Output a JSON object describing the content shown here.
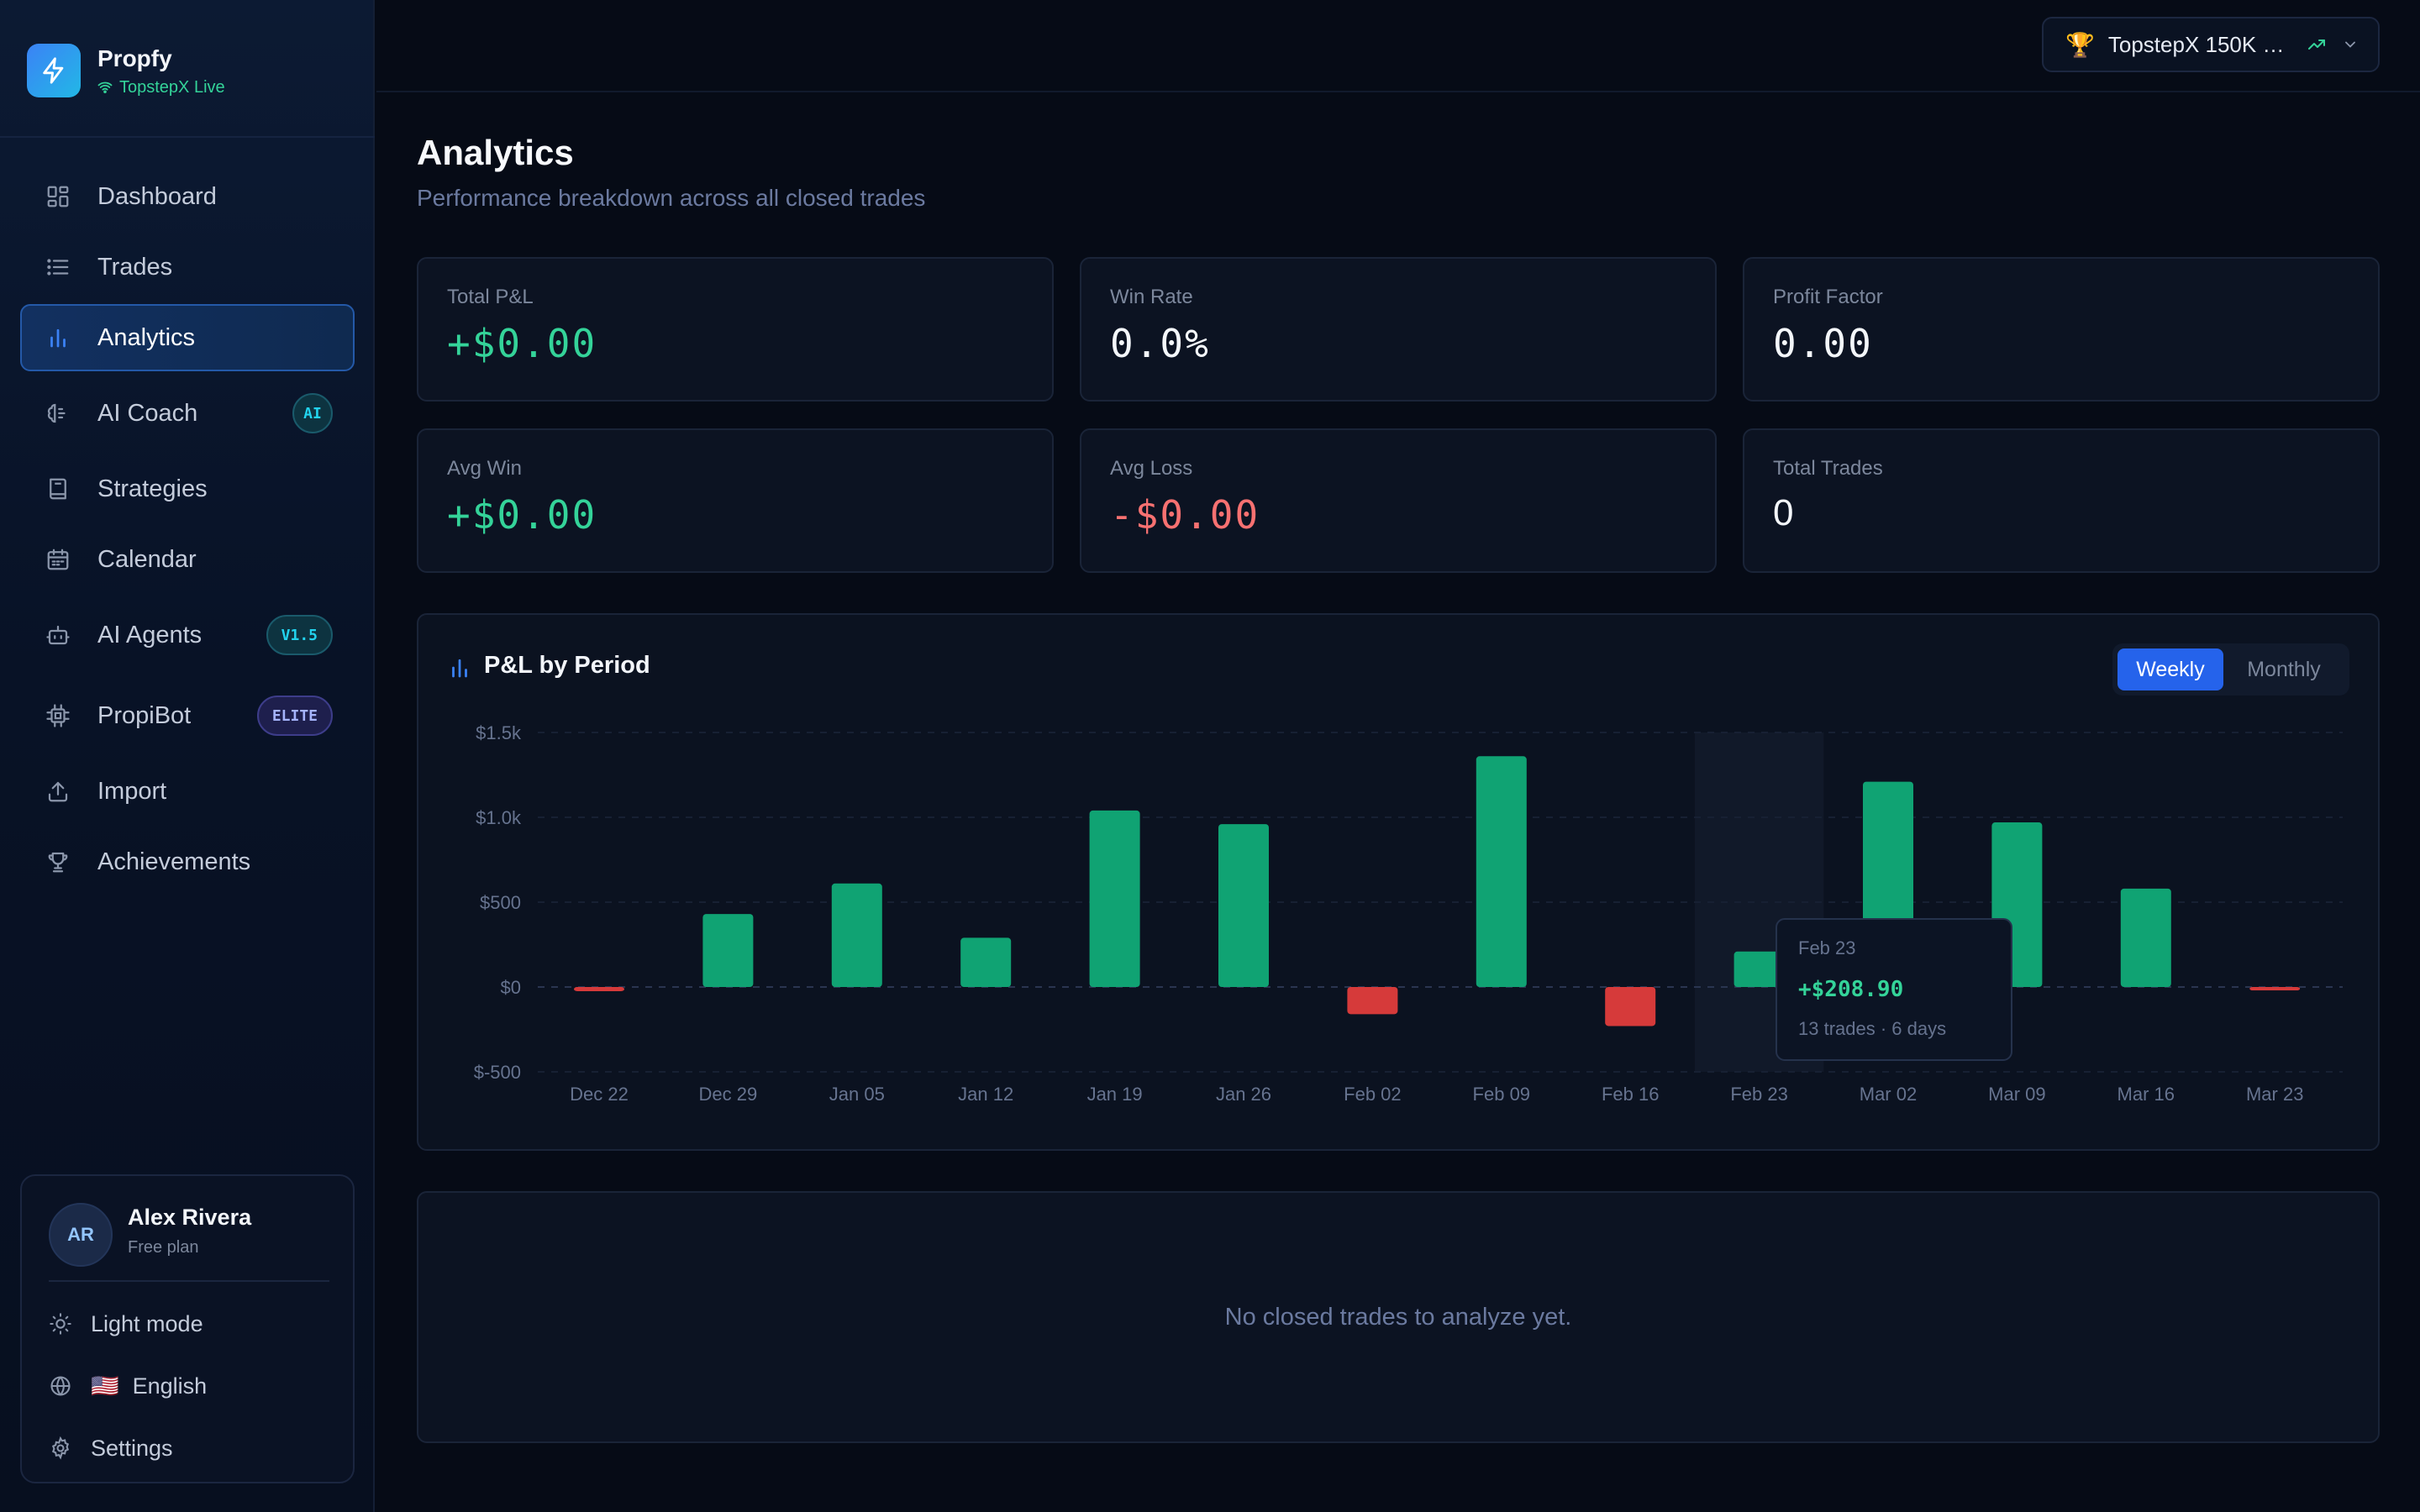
{
  "brand": {
    "name": "Propfy",
    "connection": "TopstepX Live"
  },
  "nav": [
    {
      "id": "dashboard",
      "label": "Dashboard",
      "icon": "grid-icon"
    },
    {
      "id": "trades",
      "label": "Trades",
      "icon": "list-icon"
    },
    {
      "id": "analytics",
      "label": "Analytics",
      "icon": "bar-chart-icon",
      "active": true
    },
    {
      "id": "ai-coach",
      "label": "AI Coach",
      "icon": "brain-icon",
      "badge": "AI"
    },
    {
      "id": "strategies",
      "label": "Strategies",
      "icon": "book-icon"
    },
    {
      "id": "calendar",
      "label": "Calendar",
      "icon": "calendar-icon"
    },
    {
      "id": "ai-agents",
      "label": "AI Agents",
      "icon": "bot-icon",
      "badge": "V1.5"
    },
    {
      "id": "propibot",
      "label": "PropiBot",
      "icon": "chip-icon",
      "badge": "ELITE"
    },
    {
      "id": "import",
      "label": "Import",
      "icon": "upload-icon"
    },
    {
      "id": "achievements",
      "label": "Achievements",
      "icon": "trophy-icon"
    }
  ],
  "user": {
    "initials": "AR",
    "name": "Alex Rivera",
    "plan": "Free plan",
    "theme_label": "Light mode",
    "language_flag": "🇺🇸",
    "language_label": "English",
    "settings_label": "Settings"
  },
  "account_selector": {
    "label": "TopstepX 150K Fu...",
    "icon": "🏆"
  },
  "header": {
    "title": "Analytics",
    "subtitle": "Performance breakdown across all closed trades"
  },
  "stats": {
    "total_pnl": {
      "label": "Total P&L",
      "value": "+$0.00"
    },
    "win_rate": {
      "label": "Win Rate",
      "value": "0.0%"
    },
    "profit_factor": {
      "label": "Profit Factor",
      "value": "0.00"
    },
    "avg_win": {
      "label": "Avg Win",
      "value": "+$0.00"
    },
    "avg_loss": {
      "label": "Avg Loss",
      "value": "-$0.00"
    },
    "total_trades": {
      "label": "Total Trades",
      "value": "0"
    }
  },
  "chart": {
    "title": "P&L by Period",
    "toggle": {
      "weekly": "Weekly",
      "monthly": "Monthly",
      "selected": "Weekly"
    },
    "tooltip": {
      "date": "Feb 23",
      "value": "+$208.90",
      "detail": "13 trades · 6 days"
    },
    "colors": {
      "positive": "#10a373",
      "negative": "#d63a3a"
    }
  },
  "chart_data": {
    "type": "bar",
    "categories": [
      "Dec 22",
      "Dec 29",
      "Jan 05",
      "Jan 12",
      "Jan 19",
      "Jan 26",
      "Feb 02",
      "Feb 09",
      "Feb 16",
      "Feb 23",
      "Mar 02",
      "Mar 09",
      "Mar 16",
      "Mar 23"
    ],
    "values": [
      -25,
      430,
      610,
      290,
      1040,
      960,
      -160,
      1360,
      -230,
      208.9,
      1210,
      970,
      580,
      -20
    ],
    "yticks": [
      1500,
      1000,
      500,
      0,
      -500
    ],
    "ytick_labels": [
      "$1.5k",
      "$1.0k",
      "$500",
      "$0",
      "$-500"
    ],
    "ylim": [
      -500,
      1500
    ],
    "highlighted_category": "Feb 23",
    "grid": true,
    "xlabel": "",
    "ylabel": ""
  },
  "empty_state": {
    "text": "No closed trades to analyze yet."
  }
}
